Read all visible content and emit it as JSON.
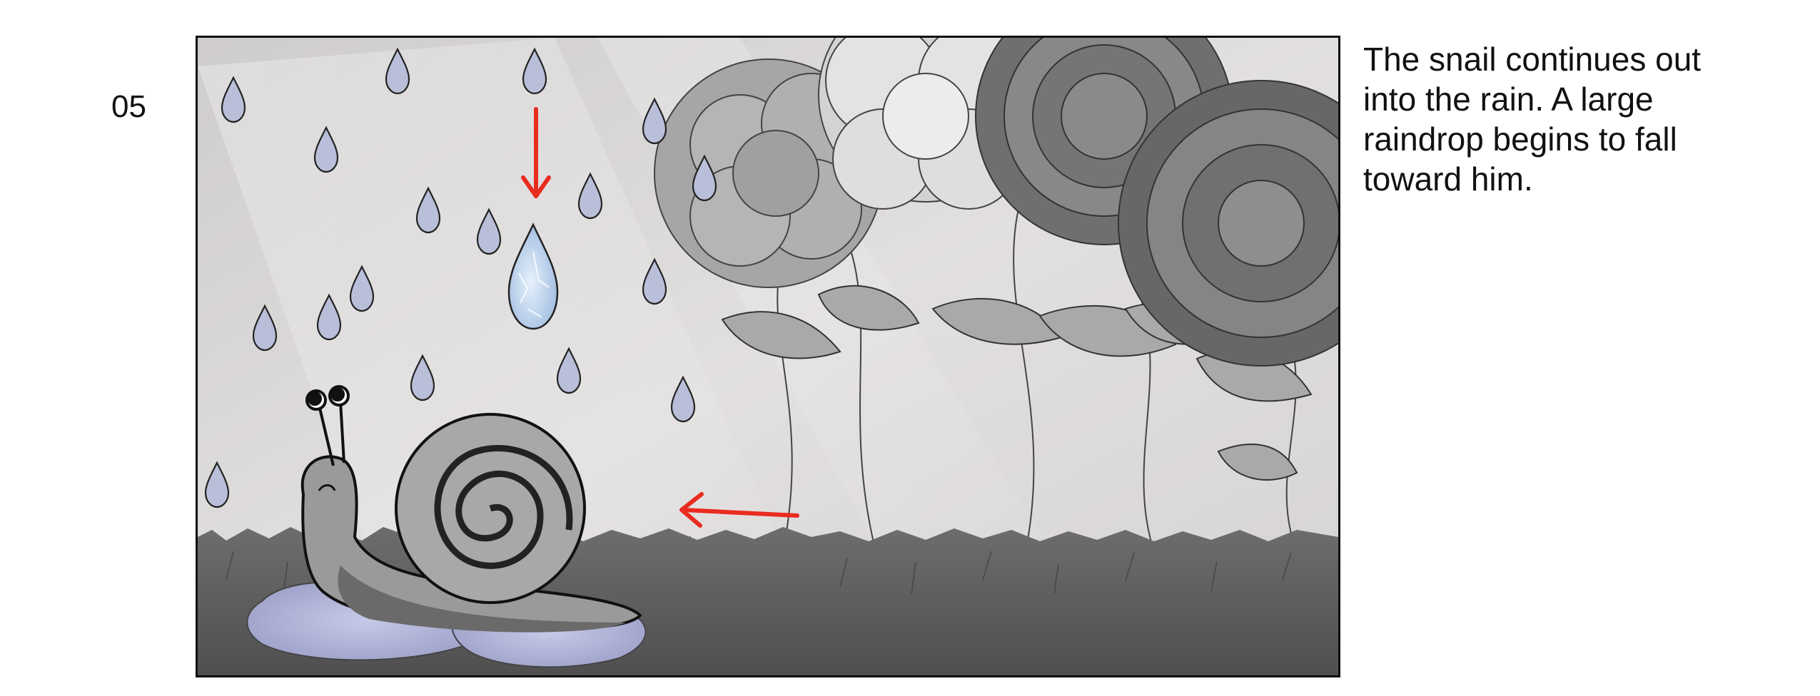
{
  "storyboard": {
    "panel_number": "05",
    "caption": "The snail continues out\ninto the rain. A large\nraindrop begins to fall\ntoward him."
  },
  "colors": {
    "frame": "#111111",
    "background": "#dcd9d9",
    "raindrop": "#b9bfd8",
    "large_raindrop": "#b9d2ea",
    "snail": "#9a9a9a",
    "grass": "#5e5e5e",
    "arrow": "#ea2b1f"
  },
  "icons": [
    "raindrop-icon",
    "arrow-down-icon",
    "arrow-left-icon",
    "snail-icon",
    "flower-icon"
  ]
}
